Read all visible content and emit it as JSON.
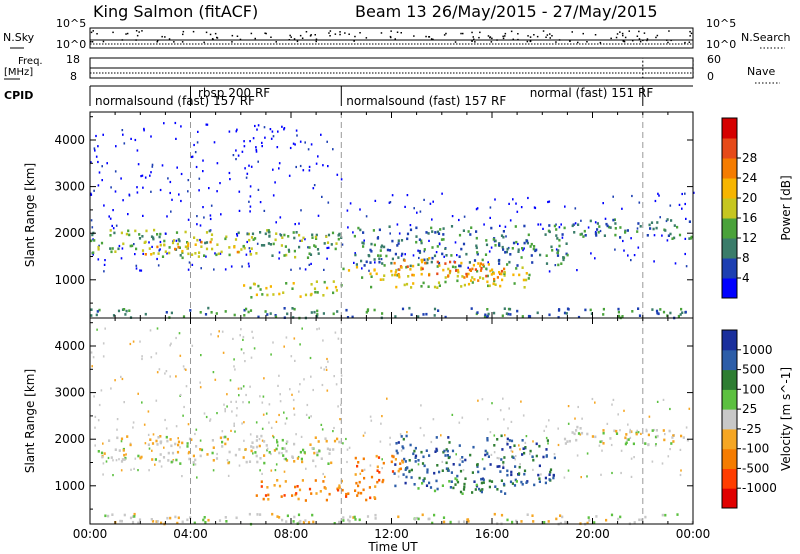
{
  "header": {
    "station": "King Salmon (fitACF)",
    "beam": "Beam 13 26/May/2015 - 27/May/2015"
  },
  "top_panel": {
    "nsky_label": "N.Sky",
    "nsky_ticks": [
      "10^5",
      "10^0"
    ],
    "nsearch_label": "N.Search",
    "nsearch_ticks": [
      "10^5",
      "10^0"
    ],
    "freq_label_1": "Freq.",
    "freq_label_2": "[MHz]",
    "freq_ticks": [
      "18",
      "8"
    ],
    "nave_label": "Nave",
    "nave_ticks": [
      "60",
      "0"
    ],
    "cpid_label": "CPID",
    "cpid_segments": [
      {
        "label": "normalsound (fast) 157 RF",
        "row": 2
      },
      {
        "label": "rbsp 200 RF",
        "row": 1
      },
      {
        "label": "normalsound (fast) 157 RF",
        "row": 2
      },
      {
        "label": "normal (fast) 151 RF",
        "row": 1
      }
    ]
  },
  "axes": {
    "xlabel": "Time UT",
    "ylabel": "Slant Range [km]",
    "xticks": [
      "00:00",
      "04:00",
      "08:00",
      "12:00",
      "16:00",
      "20:00",
      "00:00"
    ],
    "yticks": [
      "1000",
      "2000",
      "3000",
      "4000"
    ],
    "dashed_lines_hours": [
      4,
      10,
      22
    ]
  },
  "chart_data": [
    {
      "type": "heatmap",
      "title": "",
      "xlabel": "Time UT",
      "ylabel": "Slant Range [km]",
      "colorbar_label": "Power [dB]",
      "colorbar_ticks": [
        "4",
        "8",
        "12",
        "16",
        "20",
        "24",
        "28"
      ],
      "colorbar_colors": [
        "#0000ff",
        "#1d3fb2",
        "#3a7c6a",
        "#4aa23a",
        "#c6c620",
        "#f7b500",
        "#f57c00",
        "#e64a19",
        "#d50000"
      ],
      "x_range_hours": [
        0,
        24
      ],
      "y_range_km": [
        180,
        4600
      ],
      "bands": [
        {
          "t0": 0.0,
          "t1": 10.0,
          "r0": 1500,
          "r1": 2100,
          "power": 12
        },
        {
          "t0": 2.0,
          "t1": 6.5,
          "r0": 1550,
          "r1": 1850,
          "power": 20
        },
        {
          "t0": 6.0,
          "t1": 10.0,
          "r0": 650,
          "r1": 1000,
          "power": 16
        },
        {
          "t0": 10.0,
          "t1": 17.5,
          "r0": 850,
          "r1": 1300,
          "power": 16
        },
        {
          "t0": 10.5,
          "t1": 19.0,
          "r0": 1300,
          "r1": 2200,
          "power": 8
        },
        {
          "t0": 12.0,
          "t1": 14.5,
          "r0": 1100,
          "r1": 1500,
          "power": 24
        },
        {
          "t0": 14.5,
          "t1": 16.5,
          "r0": 1000,
          "r1": 1400,
          "power": 24
        },
        {
          "t0": 0.0,
          "t1": 24.0,
          "r0": 200,
          "r1": 420,
          "power": 8
        },
        {
          "t0": 19.0,
          "t1": 24.0,
          "r0": 1900,
          "r1": 2350,
          "power": 8
        }
      ]
    },
    {
      "type": "heatmap",
      "title": "",
      "xlabel": "Time UT",
      "ylabel": "Slant Range [km]",
      "colorbar_label": "Velocity [m s^-1]",
      "colorbar_ticks": [
        "1000",
        "500",
        "100",
        "25",
        "-25",
        "-100",
        "-500",
        "-1000"
      ],
      "colorbar_colors": [
        "#1a2f9c",
        "#2d5ea8",
        "#2e7d32",
        "#5cc040",
        "#c8c8c8",
        "#f5a623",
        "#f57c00",
        "#ff3d00",
        "#e00000"
      ],
      "x_range_hours": [
        0,
        24
      ],
      "y_range_km": [
        180,
        4600
      ],
      "bands": [
        {
          "t0": 0.0,
          "t1": 10.0,
          "r0": 1500,
          "r1": 2100,
          "velocity": 0
        },
        {
          "t0": 6.5,
          "t1": 11.5,
          "r0": 700,
          "r1": 1150,
          "velocity": -120
        },
        {
          "t0": 10.5,
          "t1": 12.5,
          "r0": 1100,
          "r1": 1700,
          "velocity": -500
        },
        {
          "t0": 12.0,
          "t1": 18.5,
          "r0": 1000,
          "r1": 2100,
          "velocity": 500
        },
        {
          "t0": 13.0,
          "t1": 17.0,
          "r0": 850,
          "r1": 1200,
          "velocity": 100
        },
        {
          "t0": 18.5,
          "t1": 24.0,
          "r0": 1900,
          "r1": 2300,
          "velocity": 0
        },
        {
          "t0": 0.0,
          "t1": 24.0,
          "r0": 200,
          "r1": 420,
          "velocity": 0
        }
      ]
    }
  ]
}
